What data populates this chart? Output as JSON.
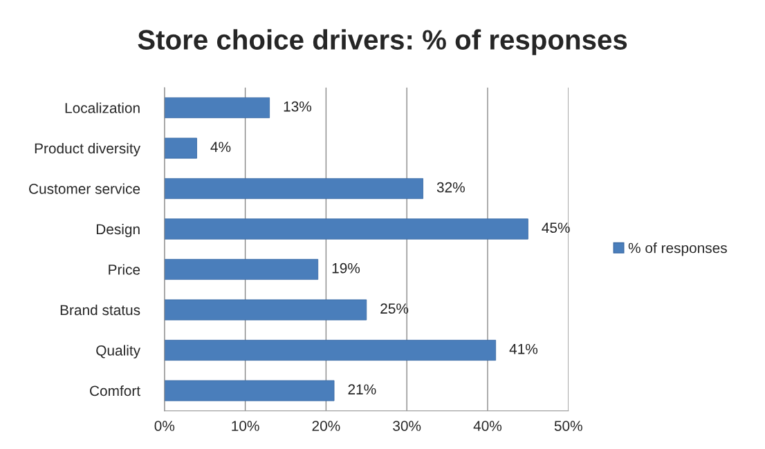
{
  "chart_data": {
    "type": "bar",
    "orientation": "horizontal",
    "title": "Store choice drivers: % of responses",
    "categories": [
      "Localization",
      "Product diversity",
      "Customer service",
      "Design",
      "Price",
      "Brand status",
      "Quality",
      "Comfort"
    ],
    "series": [
      {
        "name": "% of responses",
        "color": "#4a7ebb",
        "values": [
          13,
          4,
          32,
          45,
          19,
          25,
          41,
          21
        ],
        "value_labels": [
          "13%",
          "4%",
          "32%",
          "45%",
          "19%",
          "25%",
          "41%",
          "21%"
        ]
      }
    ],
    "xlim": [
      0,
      50
    ],
    "xticks": [
      {
        "value": 0,
        "label": "0%"
      },
      {
        "value": 10,
        "label": "10%"
      },
      {
        "value": 20,
        "label": "20%"
      },
      {
        "value": 30,
        "label": "30%"
      },
      {
        "value": 40,
        "label": "40%"
      },
      {
        "value": 50,
        "label": "50%"
      }
    ],
    "grid": "x",
    "legend": "right"
  }
}
